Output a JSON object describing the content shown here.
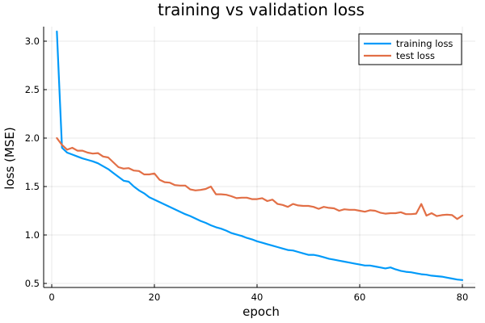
{
  "chart_data": {
    "type": "line",
    "title": "training vs validation loss",
    "xlabel": "epoch",
    "ylabel": "loss (MSE)",
    "xlim": [
      0,
      80
    ],
    "ylim": [
      0.5,
      3.1
    ],
    "xticks": [
      0,
      20,
      40,
      60,
      80
    ],
    "yticks": [
      0.5,
      1.0,
      1.5,
      2.0,
      2.5,
      3.0
    ],
    "xtick_labels": [
      "0",
      "20",
      "40",
      "60",
      "80"
    ],
    "ytick_labels": [
      "0.5",
      "1.0",
      "1.5",
      "2.0",
      "2.5",
      "3.0"
    ],
    "grid": true,
    "legend_position": "top-right",
    "x": [
      1,
      2,
      3,
      4,
      5,
      6,
      7,
      8,
      9,
      10,
      11,
      12,
      13,
      14,
      15,
      16,
      17,
      18,
      19,
      20,
      21,
      22,
      23,
      24,
      25,
      26,
      27,
      28,
      29,
      30,
      31,
      32,
      33,
      34,
      35,
      36,
      37,
      38,
      39,
      40,
      41,
      42,
      43,
      44,
      45,
      46,
      47,
      48,
      49,
      50,
      51,
      52,
      53,
      54,
      55,
      56,
      57,
      58,
      59,
      60,
      61,
      62,
      63,
      64,
      65,
      66,
      67,
      68,
      69,
      70,
      71,
      72,
      73,
      74,
      75,
      76,
      77,
      78,
      79,
      80
    ],
    "series": [
      {
        "name": "training loss",
        "color": "#009af9",
        "values": [
          3.1,
          1.9,
          1.85,
          1.83,
          1.81,
          1.79,
          1.775,
          1.76,
          1.74,
          1.71,
          1.68,
          1.64,
          1.6,
          1.56,
          1.55,
          1.5,
          1.46,
          1.43,
          1.39,
          1.365,
          1.34,
          1.315,
          1.29,
          1.265,
          1.24,
          1.215,
          1.195,
          1.17,
          1.145,
          1.125,
          1.1,
          1.08,
          1.065,
          1.045,
          1.02,
          1.005,
          0.99,
          0.97,
          0.955,
          0.935,
          0.92,
          0.905,
          0.89,
          0.875,
          0.86,
          0.845,
          0.84,
          0.825,
          0.81,
          0.795,
          0.795,
          0.785,
          0.77,
          0.755,
          0.745,
          0.735,
          0.725,
          0.715,
          0.705,
          0.695,
          0.685,
          0.685,
          0.675,
          0.665,
          0.655,
          0.665,
          0.645,
          0.63,
          0.62,
          0.615,
          0.605,
          0.595,
          0.59,
          0.58,
          0.575,
          0.57,
          0.56,
          0.55,
          0.54,
          0.535
        ]
      },
      {
        "name": "test loss",
        "color": "#e26f46",
        "values": [
          2.0,
          1.93,
          1.88,
          1.9,
          1.87,
          1.87,
          1.85,
          1.84,
          1.845,
          1.81,
          1.8,
          1.75,
          1.7,
          1.685,
          1.69,
          1.665,
          1.66,
          1.625,
          1.625,
          1.635,
          1.57,
          1.545,
          1.54,
          1.515,
          1.51,
          1.51,
          1.47,
          1.46,
          1.465,
          1.475,
          1.5,
          1.42,
          1.42,
          1.415,
          1.4,
          1.38,
          1.385,
          1.385,
          1.37,
          1.37,
          1.38,
          1.35,
          1.365,
          1.32,
          1.31,
          1.29,
          1.32,
          1.305,
          1.3,
          1.3,
          1.29,
          1.27,
          1.29,
          1.28,
          1.275,
          1.25,
          1.265,
          1.26,
          1.26,
          1.25,
          1.24,
          1.255,
          1.25,
          1.23,
          1.22,
          1.225,
          1.225,
          1.235,
          1.215,
          1.215,
          1.22,
          1.32,
          1.2,
          1.225,
          1.195,
          1.205,
          1.21,
          1.205,
          1.165,
          1.2
        ]
      }
    ]
  }
}
